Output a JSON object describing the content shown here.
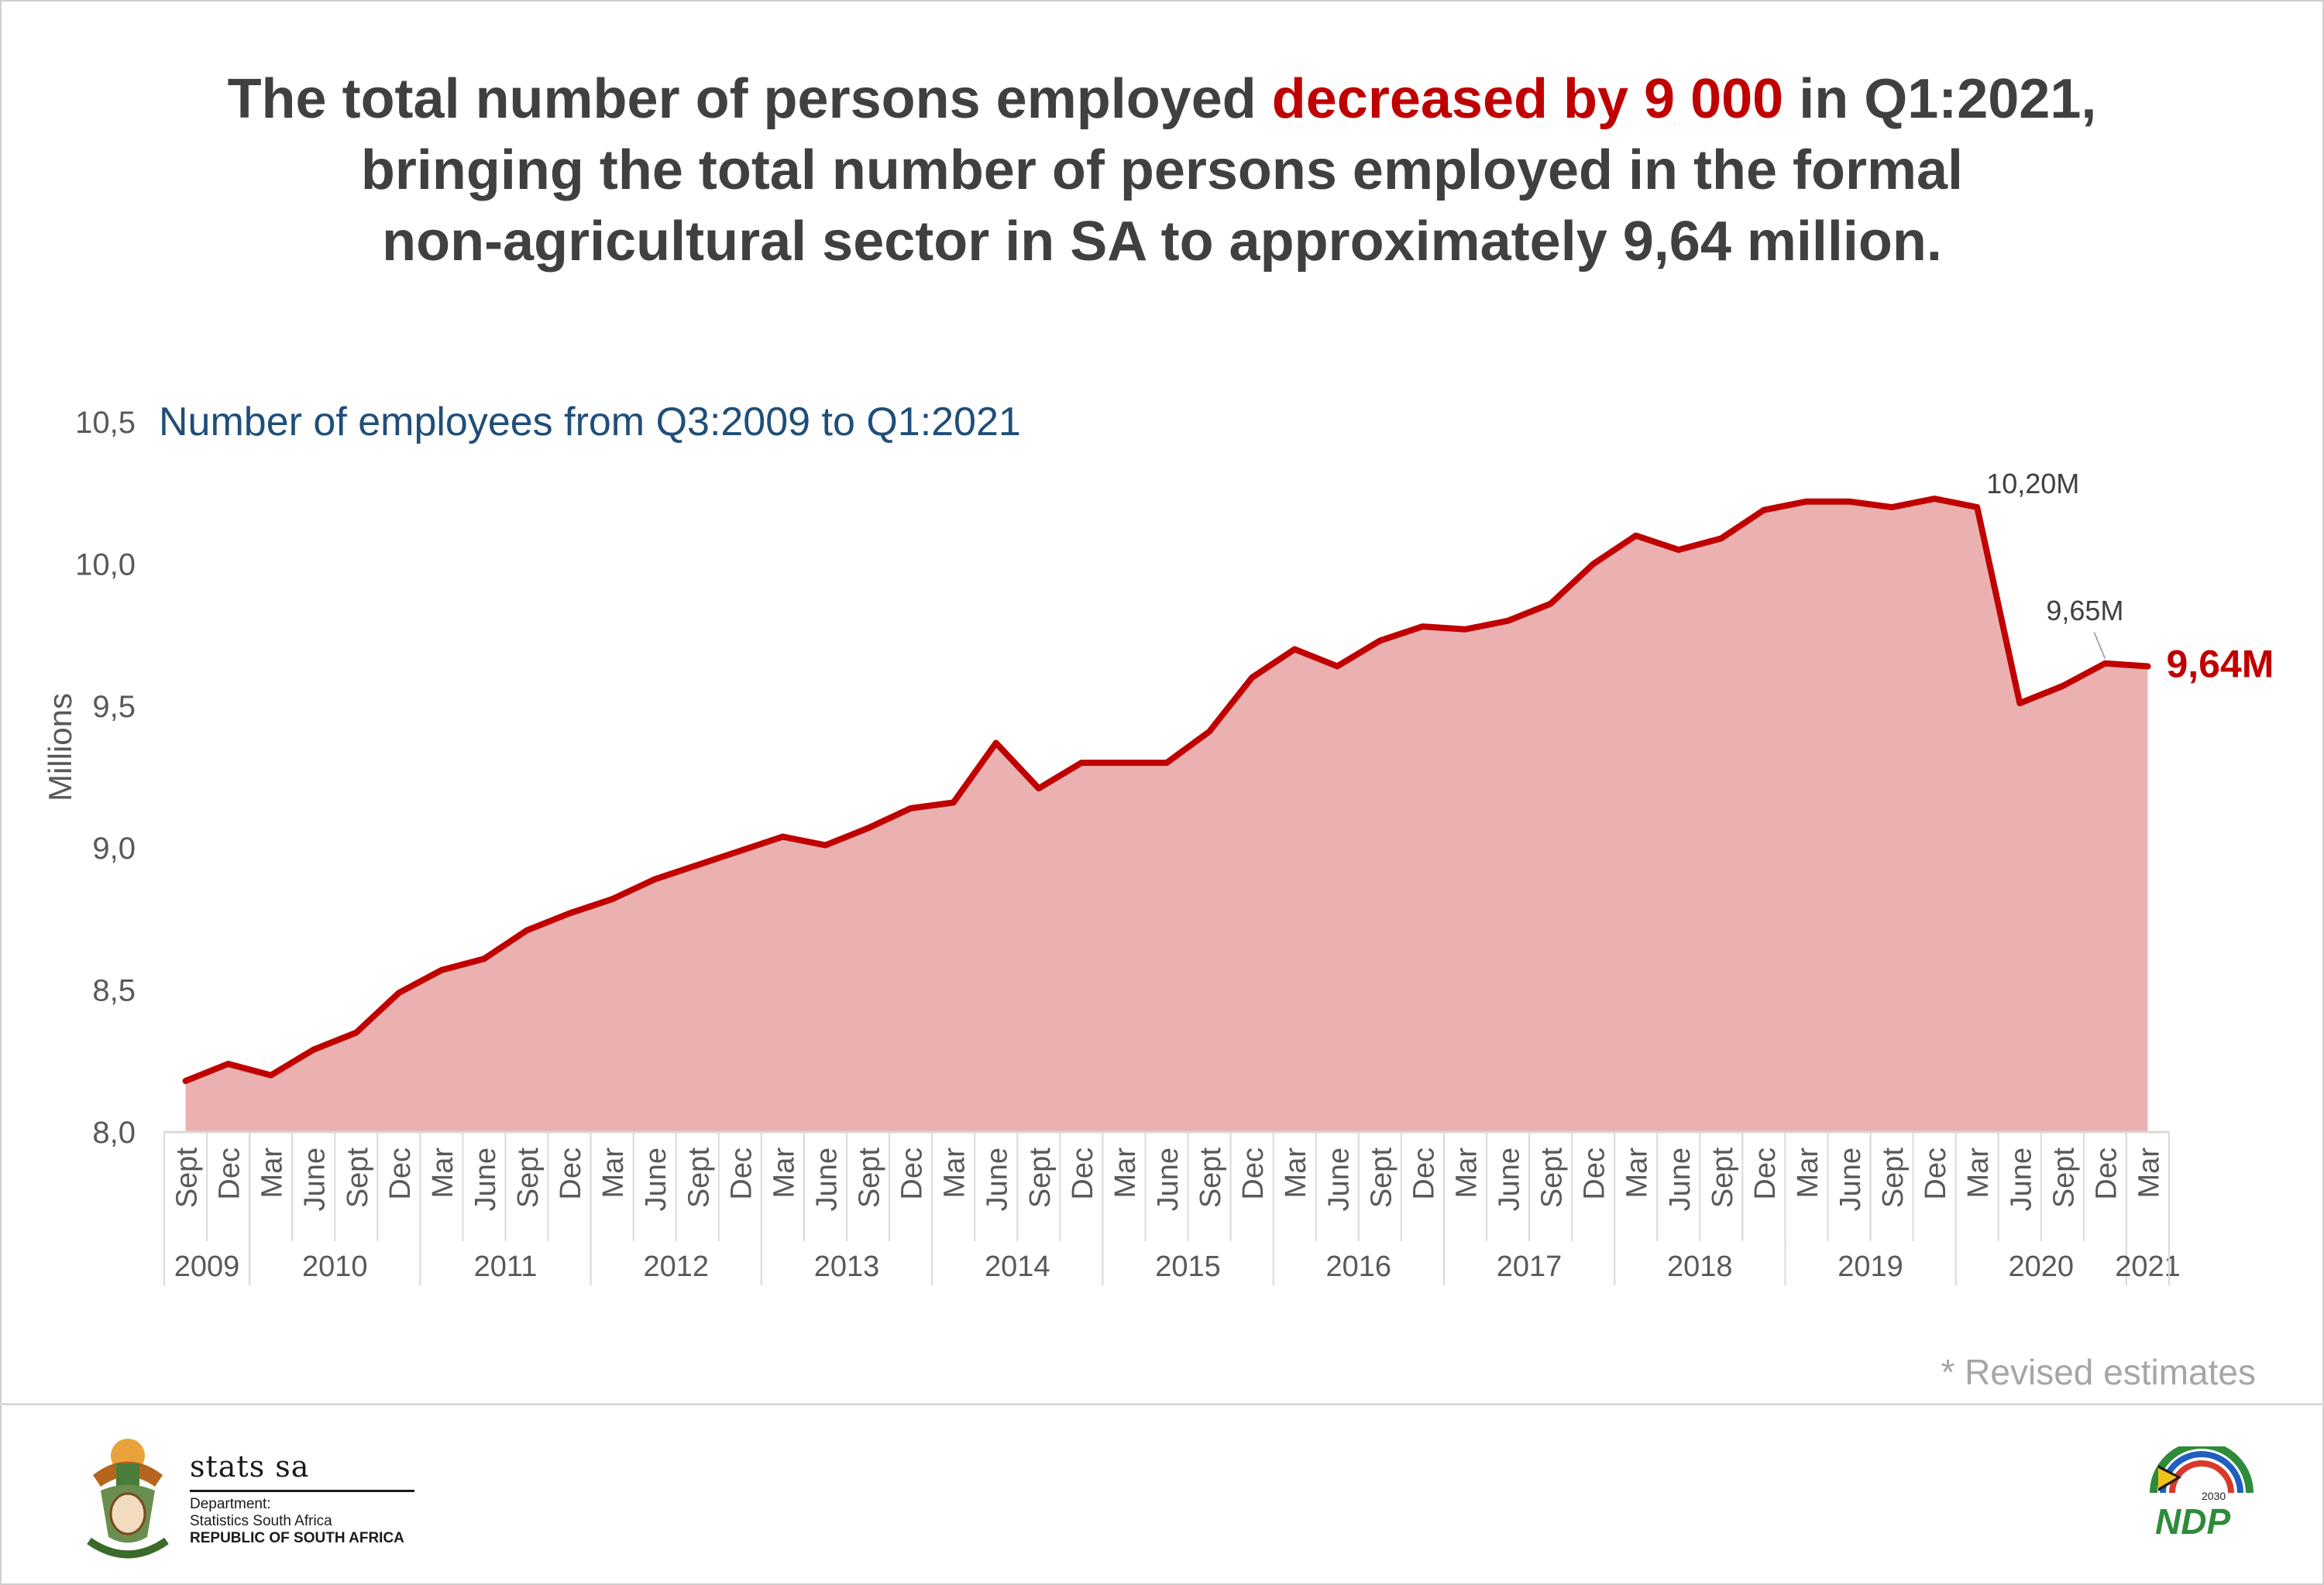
{
  "headline": {
    "part1": "The total number of persons employed ",
    "highlight": "decreased by 9 000",
    "part2": " in Q1:2021,",
    "line2": "bringing the total number of persons employed in the formal",
    "line3": "non-agricultural sector in SA to approximately 9,64 million."
  },
  "colors": {
    "highlight": "#c00000",
    "line": "#c00000",
    "area": "#ebb1b1",
    "subtitle": "#1f4e79"
  },
  "chart_data": {
    "type": "area",
    "title": "Number of employees from Q3:2009 to Q1:2021",
    "ylabel": "Millions",
    "xlabel": "",
    "ylim": [
      8.0,
      10.5
    ],
    "yticks": [
      "8,0",
      "8,5",
      "9,0",
      "9,5",
      "10,0",
      "10,5"
    ],
    "ytick_values": [
      8.0,
      8.5,
      9.0,
      9.5,
      10.0,
      10.5
    ],
    "quarters": [
      "Sept",
      "Dec",
      "Mar",
      "June",
      "Sept",
      "Dec",
      "Mar",
      "June",
      "Sept",
      "Dec",
      "Mar",
      "June",
      "Sept",
      "Dec",
      "Mar",
      "June",
      "Sept",
      "Dec",
      "Mar",
      "June",
      "Sept",
      "Dec",
      "Mar",
      "June",
      "Sept",
      "Dec",
      "Mar",
      "June",
      "Sept",
      "Dec",
      "Mar",
      "June",
      "Sept",
      "Dec",
      "Mar",
      "June",
      "Sept",
      "Dec",
      "Mar",
      "June",
      "Sept",
      "Dec",
      "Mar",
      "June",
      "Sept",
      "Dec",
      "Mar"
    ],
    "years": [
      {
        "label": "2009",
        "count": 2
      },
      {
        "label": "2010",
        "count": 4
      },
      {
        "label": "2011",
        "count": 4
      },
      {
        "label": "2012",
        "count": 4
      },
      {
        "label": "2013",
        "count": 4
      },
      {
        "label": "2014",
        "count": 4
      },
      {
        "label": "2015",
        "count": 4
      },
      {
        "label": "2016",
        "count": 4
      },
      {
        "label": "2017",
        "count": 4
      },
      {
        "label": "2018",
        "count": 4
      },
      {
        "label": "2019",
        "count": 4
      },
      {
        "label": "2020",
        "count": 4
      },
      {
        "label": "2021",
        "count": 1
      }
    ],
    "values": [
      8.18,
      8.24,
      8.2,
      8.29,
      8.35,
      8.49,
      8.57,
      8.61,
      8.71,
      8.77,
      8.82,
      8.89,
      8.94,
      8.99,
      9.04,
      9.01,
      9.07,
      9.14,
      9.16,
      9.37,
      9.21,
      9.3,
      9.3,
      9.3,
      9.41,
      9.6,
      9.7,
      9.64,
      9.73,
      9.78,
      9.77,
      9.8,
      9.86,
      10.0,
      10.1,
      10.05,
      10.09,
      10.19,
      10.22,
      10.22,
      10.2,
      10.23,
      10.2,
      9.51,
      9.57,
      9.65,
      9.64
    ],
    "annotations": [
      {
        "index": 42,
        "text": "10,20M"
      },
      {
        "index": 45,
        "text": "9,65M"
      },
      {
        "index": 46,
        "text": "9,64M"
      }
    ]
  },
  "footnote": "* Revised estimates",
  "logo": {
    "name": "stats sa",
    "line1": "Department:",
    "line2": "Statistics South Africa",
    "line3": "REPUBLIC OF SOUTH AFRICA",
    "ndp": "NDP",
    "ndp_year": "2030"
  }
}
